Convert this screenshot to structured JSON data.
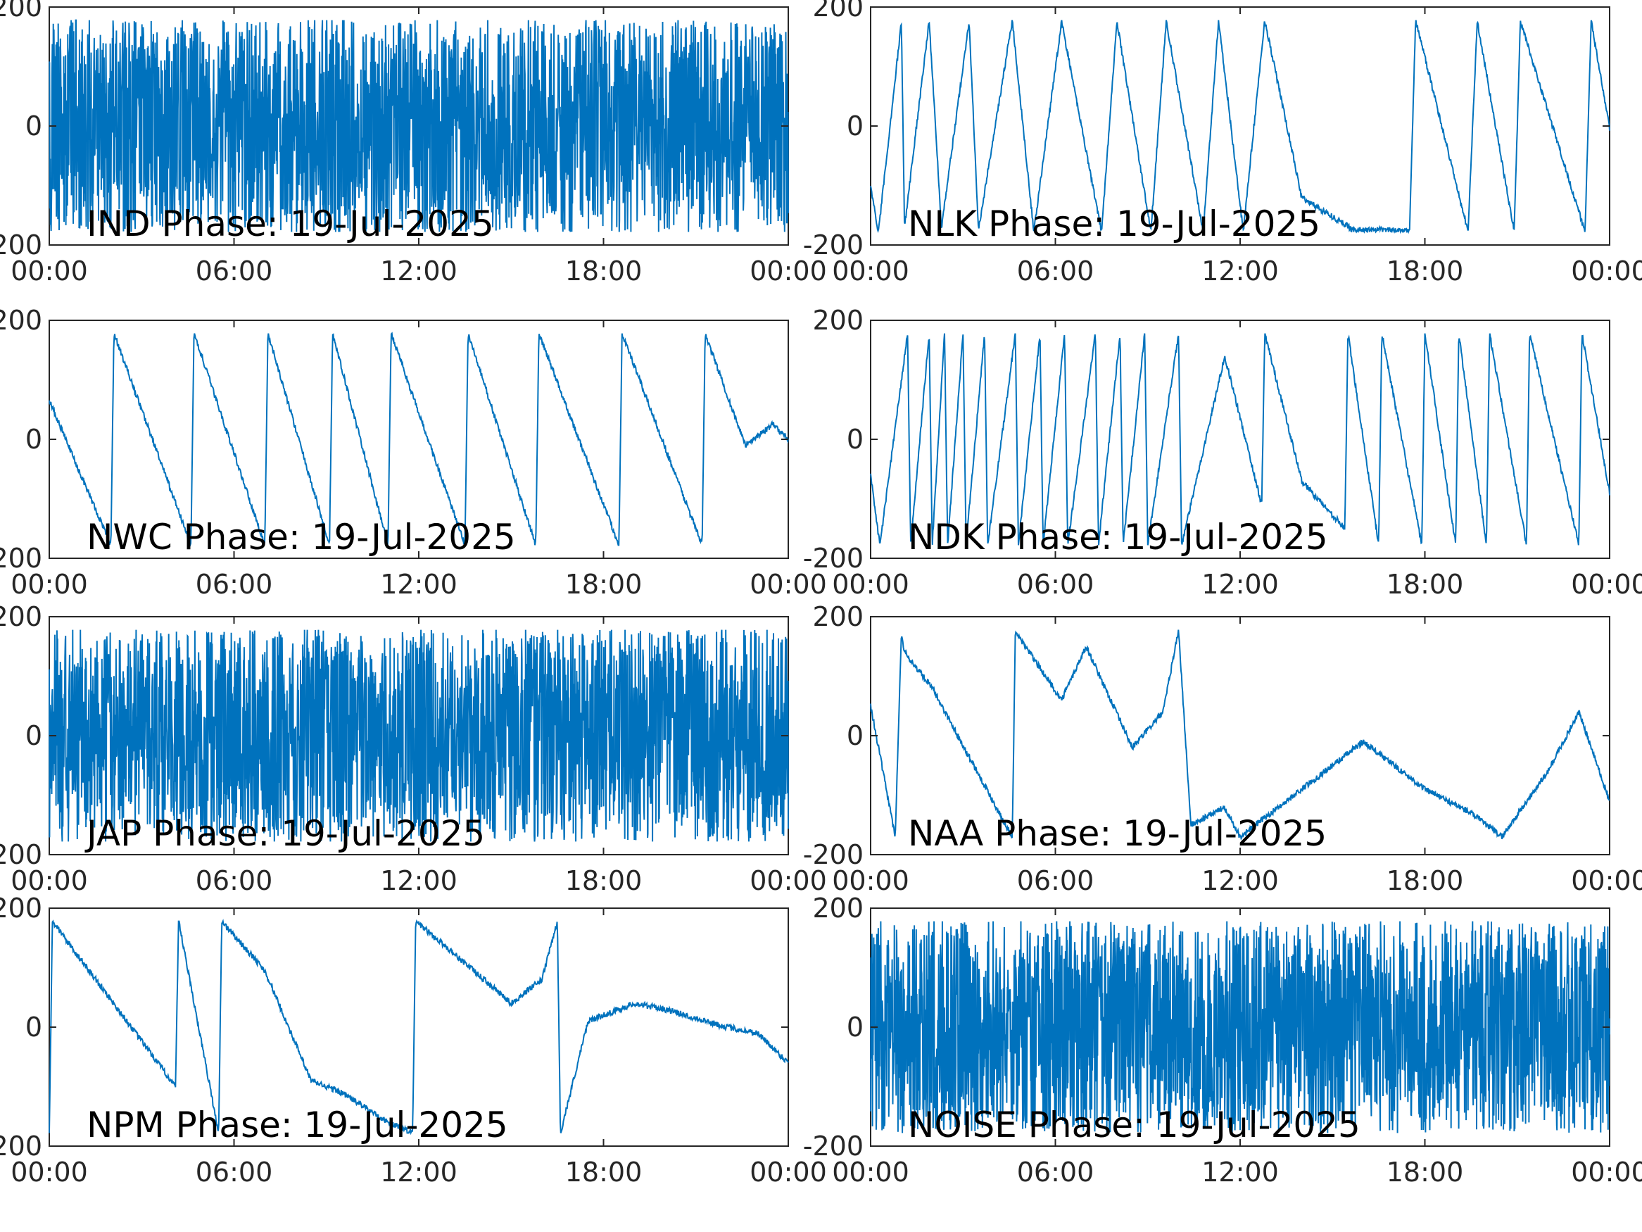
{
  "figure": {
    "line_color": "#0072BD",
    "x_ticks": [
      "00:00",
      "06:00",
      "12:00",
      "18:00",
      "00:00"
    ],
    "y_ticks": [
      "-200",
      "0",
      "200"
    ]
  },
  "chart_data": [
    {
      "type": "line",
      "title": "IND Phase: 19-Jul-2025",
      "xlabel": "",
      "ylabel": "",
      "xlim": [
        "00:00",
        "24:00"
      ],
      "ylim": [
        -200,
        200
      ],
      "grid": false,
      "pattern": "wrapped-noisy",
      "x_hours": [
        0,
        3,
        6,
        9,
        12,
        15,
        18,
        21,
        24
      ],
      "y": [
        -180,
        180,
        20,
        -150,
        180,
        -180,
        180,
        -180,
        180
      ]
    },
    {
      "type": "line",
      "title": "NLK Phase: 19-Jul-2025",
      "xlabel": "",
      "ylabel": "",
      "xlim": [
        "00:00",
        "24:00"
      ],
      "ylim": [
        -200,
        200
      ],
      "grid": false,
      "pattern": "sawtooth",
      "x_hours": [
        0,
        0.25,
        1.0,
        1.1,
        1.9,
        2.3,
        3.2,
        3.5,
        4.6,
        5.3,
        6.2,
        7.5,
        8.0,
        9.1,
        9.6,
        10.8,
        11.3,
        12.1,
        12.8,
        14.0,
        15.7,
        17.5,
        17.7,
        19.4,
        19.7,
        20.9,
        21.1,
        23.2,
        23.4,
        24.0
      ],
      "y": [
        -100,
        -180,
        175,
        -170,
        178,
        -170,
        176,
        -175,
        178,
        -178,
        176,
        -178,
        176,
        -178,
        176,
        -178,
        178,
        -178,
        178,
        -120,
        -175,
        -175,
        178,
        -178,
        176,
        -178,
        176,
        -178,
        176,
        -5
      ]
    },
    {
      "type": "line",
      "title": "NWC Phase: 19-Jul-2025",
      "xlabel": "",
      "ylabel": "",
      "xlim": [
        "00:00",
        "24:00"
      ],
      "ylim": [
        -200,
        200
      ],
      "grid": false,
      "pattern": "sawtooth",
      "x_hours": [
        0,
        2.0,
        2.1,
        4.6,
        4.7,
        7.0,
        7.1,
        9.1,
        9.2,
        11.0,
        11.1,
        13.5,
        13.6,
        15.8,
        15.9,
        18.5,
        18.6,
        21.2,
        21.3,
        22.6,
        23.5,
        24.0
      ],
      "y": [
        65,
        -178,
        178,
        -178,
        178,
        -178,
        178,
        -178,
        178,
        -178,
        178,
        -178,
        178,
        -178,
        178,
        -178,
        178,
        -178,
        178,
        -10,
        25,
        0
      ]
    },
    {
      "type": "line",
      "title": "NDK Phase: 19-Jul-2025",
      "xlabel": "",
      "ylabel": "",
      "xlim": [
        "00:00",
        "24:00"
      ],
      "ylim": [
        -200,
        200
      ],
      "grid": false,
      "pattern": "sawtooth",
      "x_hours": [
        0,
        0.3,
        1.2,
        1.3,
        1.9,
        2.0,
        2.4,
        2.5,
        3.0,
        3.1,
        3.7,
        3.8,
        4.7,
        4.8,
        5.5,
        5.6,
        6.3,
        6.4,
        7.3,
        7.4,
        8.1,
        8.2,
        8.9,
        9.0,
        10.0,
        10.1,
        11.5,
        12.7,
        12.8,
        14.0,
        15.4,
        15.5,
        16.5,
        16.6,
        17.9,
        18.0,
        19.0,
        19.1,
        20.0,
        20.1,
        21.3,
        21.4,
        23.0,
        23.1,
        24.0
      ],
      "y": [
        -60,
        -178,
        178,
        -178,
        178,
        -178,
        178,
        -178,
        178,
        -178,
        178,
        -178,
        178,
        -178,
        178,
        -178,
        178,
        -178,
        178,
        -178,
        178,
        -178,
        178,
        -178,
        178,
        -178,
        140,
        -110,
        178,
        -70,
        -150,
        178,
        -178,
        178,
        -178,
        178,
        -178,
        178,
        -178,
        178,
        -178,
        178,
        -178,
        178,
        -90
      ]
    },
    {
      "type": "line",
      "title": "JAP Phase: 19-Jul-2025",
      "xlabel": "",
      "ylabel": "",
      "xlim": [
        "00:00",
        "24:00"
      ],
      "ylim": [
        -200,
        200
      ],
      "grid": false,
      "pattern": "wrapped-noisy",
      "x_hours": [
        0,
        3,
        6,
        9,
        12,
        15,
        18,
        21,
        24
      ],
      "y": [
        -50,
        20,
        -180,
        180,
        -180,
        180,
        -100,
        180,
        -180
      ]
    },
    {
      "type": "line",
      "title": "NAA Phase: 19-Jul-2025",
      "xlabel": "",
      "ylabel": "",
      "xlim": [
        "00:00",
        "24:00"
      ],
      "ylim": [
        -200,
        200
      ],
      "grid": false,
      "pattern": "mixed",
      "x_hours": [
        0,
        0.8,
        1.0,
        1.1,
        2.0,
        4.6,
        4.7,
        6.2,
        7.0,
        8.5,
        9.5,
        10.0,
        10.4,
        11.5,
        12.0,
        14.0,
        16.0,
        18.0,
        19.5,
        20.5,
        22.0,
        23.0,
        24.0
      ],
      "y": [
        50,
        -170,
        175,
        140,
        80,
        -170,
        175,
        60,
        150,
        -20,
        40,
        178,
        -150,
        -120,
        -170,
        -90,
        -10,
        -90,
        -130,
        -170,
        -60,
        40,
        -110
      ]
    },
    {
      "type": "line",
      "title": "NPM Phase: 19-Jul-2025",
      "xlabel": "",
      "ylabel": "",
      "xlim": [
        "00:00",
        "24:00"
      ],
      "ylim": [
        -200,
        200
      ],
      "grid": false,
      "pattern": "sawtooth",
      "x_hours": [
        0,
        0.1,
        4.1,
        4.2,
        5.5,
        5.6,
        7.0,
        8.5,
        9.5,
        11.0,
        11.8,
        11.9,
        13.0,
        15.0,
        16.0,
        16.5,
        16.6,
        17.5,
        19.0,
        20.0,
        22.0,
        23.0,
        24.0
      ],
      "y": [
        -180,
        178,
        -100,
        178,
        -178,
        178,
        95,
        -90,
        -110,
        -160,
        -178,
        178,
        130,
        40,
        80,
        178,
        -178,
        10,
        40,
        30,
        0,
        -10,
        -60
      ]
    },
    {
      "type": "line",
      "title": "NOISE Phase: 19-Jul-2025",
      "xlabel": "",
      "ylabel": "",
      "xlim": [
        "00:00",
        "24:00"
      ],
      "ylim": [
        -200,
        200
      ],
      "grid": false,
      "pattern": "wrapped-noisy",
      "x_hours": [
        0,
        3,
        6,
        9,
        12,
        15,
        18,
        21,
        24
      ],
      "y": [
        0,
        -180,
        180,
        20,
        -150,
        180,
        -100,
        180,
        -180
      ]
    }
  ]
}
